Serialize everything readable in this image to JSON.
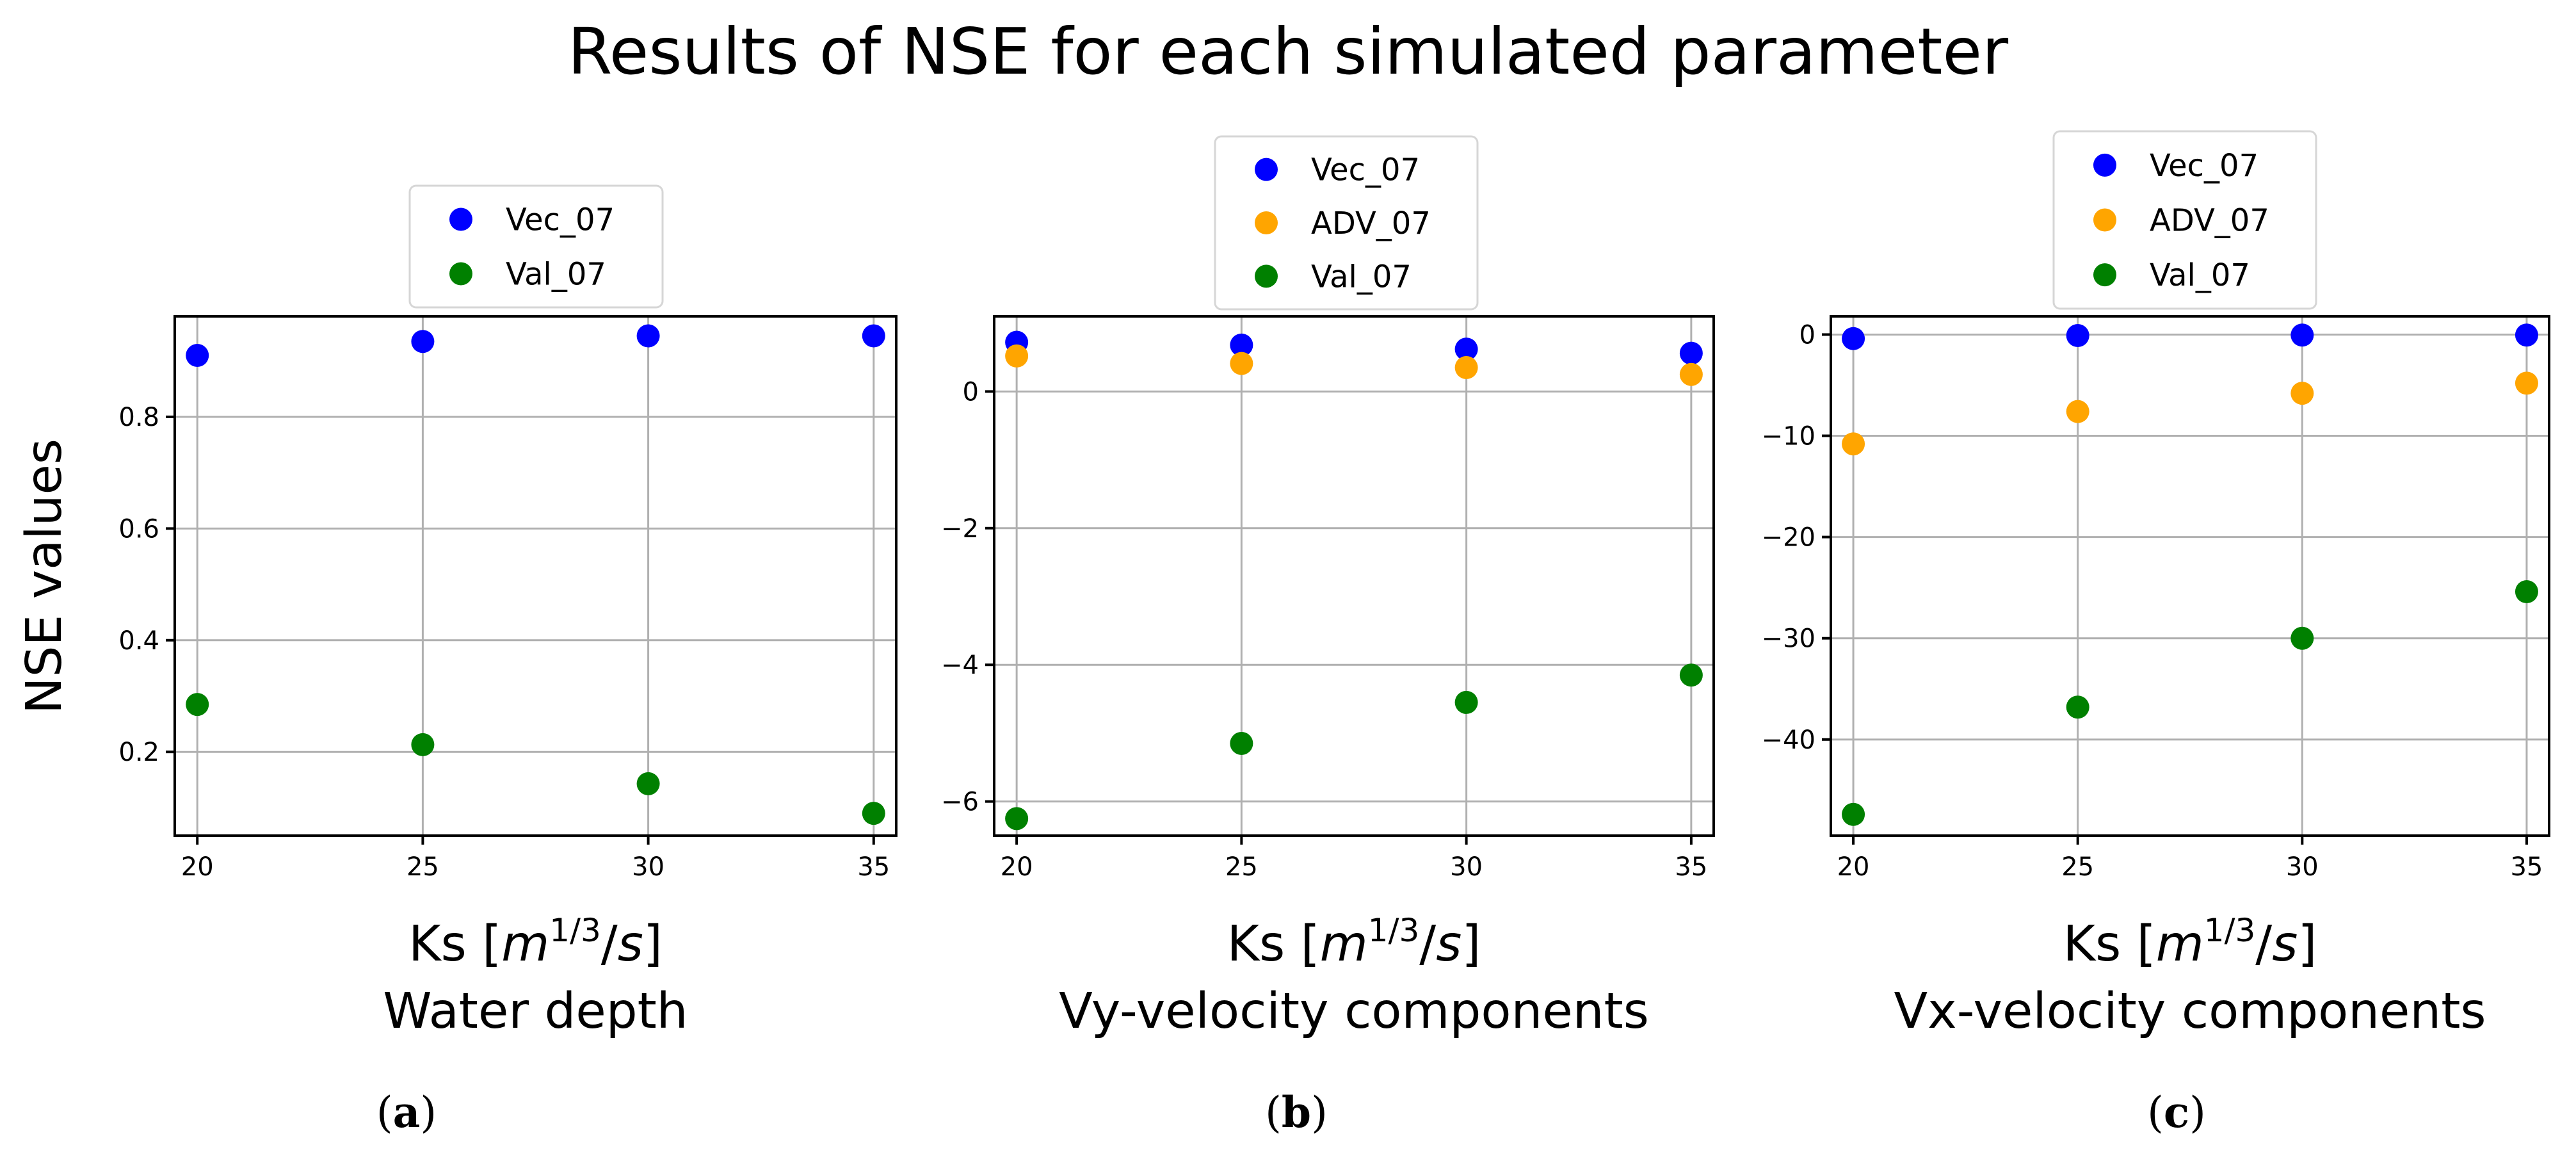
{
  "figure": {
    "title": "Results of NSE for each simulated parameter",
    "ylabel": "NSE values",
    "colors": {
      "Vec_07": "#0000ff",
      "ADV_07": "#ffa500",
      "Val_07": "#008000"
    },
    "panel_labels": [
      "(a)",
      "(b)",
      "(c)"
    ]
  },
  "chart_data": [
    {
      "type": "scatter",
      "id": "a",
      "subtitle": "Water depth",
      "xlabel": "Ks [m1/3/s]",
      "xlabel_parts": {
        "base": "Ks [",
        "var": "m",
        "sup": "1/3",
        "slash": "/",
        "var2": "s",
        "close": "]"
      },
      "x": [
        20,
        25,
        30,
        35
      ],
      "xlim": [
        19.5,
        35.5
      ],
      "xticks": [
        20,
        25,
        30,
        35
      ],
      "ylim": [
        0.05,
        0.98
      ],
      "yticks": [
        0.2,
        0.4,
        0.6,
        0.8
      ],
      "ytick_labels": [
        "0.2",
        "0.4",
        "0.6",
        "0.8"
      ],
      "grid": true,
      "legend_position": "top-center",
      "series": [
        {
          "name": "Vec_07",
          "values": [
            0.91,
            0.935,
            0.945,
            0.945
          ]
        },
        {
          "name": "Val_07",
          "values": [
            0.285,
            0.213,
            0.143,
            0.09
          ]
        }
      ]
    },
    {
      "type": "scatter",
      "id": "b",
      "subtitle": "Vy-velocity components",
      "xlabel": "Ks [m1/3/s]",
      "xlabel_parts": {
        "base": "Ks [",
        "var": "m",
        "sup": "1/3",
        "slash": "/",
        "var2": "s",
        "close": "]"
      },
      "x": [
        20,
        25,
        30,
        35
      ],
      "xlim": [
        19.5,
        35.5
      ],
      "xticks": [
        20,
        25,
        30,
        35
      ],
      "ylim": [
        -6.5,
        1.1
      ],
      "yticks": [
        -6,
        -4,
        -2,
        0
      ],
      "ytick_labels": [
        "−6",
        "−4",
        "−2",
        "0"
      ],
      "grid": true,
      "legend_position": "top-center",
      "series": [
        {
          "name": "Vec_07",
          "values": [
            0.72,
            0.68,
            0.62,
            0.56
          ]
        },
        {
          "name": "ADV_07",
          "values": [
            0.52,
            0.41,
            0.35,
            0.25
          ]
        },
        {
          "name": "Val_07",
          "values": [
            -6.25,
            -5.15,
            -4.55,
            -4.15
          ]
        }
      ]
    },
    {
      "type": "scatter",
      "id": "c",
      "subtitle": "Vx-velocity components",
      "xlabel": "Ks [m1/3/s]",
      "xlabel_parts": {
        "base": "Ks [",
        "var": "m",
        "sup": "1/3",
        "slash": "/",
        "var2": "s",
        "close": "]"
      },
      "x": [
        20,
        25,
        30,
        35
      ],
      "xlim": [
        19.5,
        35.5
      ],
      "xticks": [
        20,
        25,
        30,
        35
      ],
      "ylim": [
        -49.5,
        1.8
      ],
      "yticks": [
        -40,
        -30,
        -20,
        -10,
        0
      ],
      "ytick_labels": [
        "−40",
        "−30",
        "−20",
        "−10",
        "0"
      ],
      "grid": true,
      "legend_position": "top-center",
      "series": [
        {
          "name": "Vec_07",
          "values": [
            -0.4,
            -0.1,
            -0.05,
            -0.05
          ]
        },
        {
          "name": "ADV_07",
          "values": [
            -10.8,
            -7.6,
            -5.8,
            -4.8
          ]
        },
        {
          "name": "Val_07",
          "values": [
            -47.4,
            -36.8,
            -30.0,
            -25.4
          ]
        }
      ]
    }
  ]
}
